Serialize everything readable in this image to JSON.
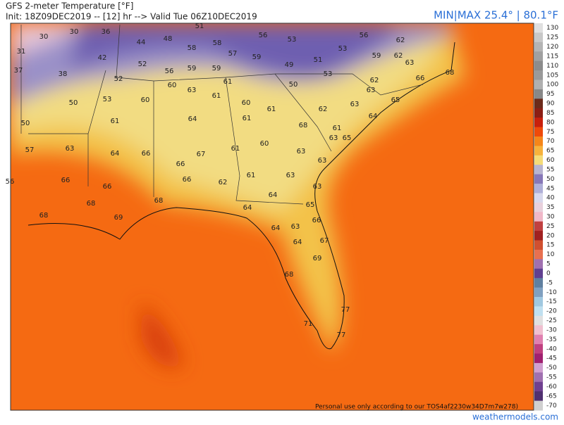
{
  "header": {
    "title": "GFS 2-meter Temperature [°F]",
    "init": "Init: 18Z09DEC2019 -- [12] hr --> Valid Tue 06Z10DEC2019",
    "minmax": "MIN|MAX 25.4° | 80.1°F"
  },
  "stations": [
    30,
    30,
    36,
    51,
    56,
    56,
    62,
    31,
    44,
    48,
    58,
    58,
    53,
    53,
    59,
    62,
    37,
    42,
    38,
    52,
    57,
    59,
    51,
    63,
    56,
    59,
    59,
    49,
    52,
    53,
    62,
    66,
    68,
    60,
    63,
    61,
    50,
    63,
    50,
    53,
    60,
    61,
    60,
    65,
    61,
    62,
    63,
    50,
    61,
    64,
    61,
    68,
    64,
    61,
    63,
    65,
    60,
    61,
    57,
    63,
    64,
    66,
    67,
    63,
    63,
    66,
    61,
    63,
    56,
    66,
    66,
    66,
    62,
    63,
    64,
    68,
    68,
    65,
    64,
    68,
    69,
    66,
    64,
    63,
    64,
    67,
    69,
    68,
    77,
    71,
    77
  ],
  "colorbar": {
    "labels": [
      130,
      125,
      120,
      115,
      110,
      105,
      100,
      95,
      90,
      85,
      80,
      75,
      70,
      65,
      60,
      55,
      50,
      45,
      40,
      35,
      30,
      25,
      20,
      15,
      10,
      5,
      0,
      -5,
      -10,
      -15,
      -20,
      -25,
      -30,
      -35,
      -40,
      -45,
      -50,
      -55,
      -60,
      -65,
      -70
    ],
    "colors": [
      "#e0e0e0",
      "#c8c8c8",
      "#b4b4b4",
      "#a0a0a0",
      "#8c8c8c",
      "#9a9a9a",
      "#b0b0b0",
      "#888888",
      "#6b2a1a",
      "#8c1e14",
      "#c8200c",
      "#ee4a0a",
      "#f5861a",
      "#f7b23c",
      "#f5dc78",
      "#b8b4d0",
      "#8878b8",
      "#b0b0d8",
      "#d8d8ec",
      "#e8d0dc",
      "#f0b8c8",
      "#c04040",
      "#a02020",
      "#d05030",
      "#e87050",
      "#a070b0",
      "#604090",
      "#6080a0",
      "#80a0c0",
      "#a0c8e0",
      "#c0e0f0",
      "#e0e0e0",
      "#f0c0d0",
      "#e080b0",
      "#c04080",
      "#a02070",
      "#d0a0d0",
      "#a070b0",
      "#704090",
      "#503070",
      "#d0d0d0"
    ]
  },
  "footer": {
    "notice": "Personal use only according to our TOS4af2230w34D7m7w278)",
    "site": "weathermodels.com"
  }
}
